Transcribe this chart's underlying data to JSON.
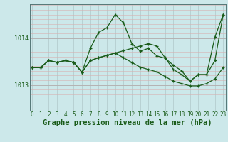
{
  "bg_color": "#cce8ea",
  "grid_color_v": "#b0c8ca",
  "grid_color_h_minor": "#d8b0b0",
  "grid_color_h_major": "#b0b0b0",
  "line_color": "#1a5c1a",
  "xlabel": "Graphe pression niveau de la mer (hPa)",
  "xlabel_fontsize": 7.5,
  "tick_fontsize": 6.0,
  "ytick_labels": [
    1013,
    1014
  ],
  "ylim": [
    1012.45,
    1014.72
  ],
  "xlim": [
    -0.3,
    23.3
  ],
  "series": [
    [
      1013.37,
      1013.37,
      1013.52,
      1013.48,
      1013.52,
      1013.48,
      1013.27,
      1013.78,
      1014.12,
      1014.22,
      1014.5,
      1014.32,
      1013.88,
      1013.72,
      1013.78,
      1013.62,
      1013.57,
      1013.42,
      1013.3,
      1013.08,
      1013.22,
      1013.22,
      1014.02,
      1014.5
    ],
    [
      1013.37,
      1013.37,
      1013.52,
      1013.48,
      1013.52,
      1013.48,
      1013.27,
      1013.52,
      1013.58,
      1013.63,
      1013.68,
      1013.73,
      1013.78,
      1013.83,
      1013.88,
      1013.83,
      1013.58,
      1013.33,
      1013.22,
      1013.08,
      1013.22,
      1013.22,
      1013.52,
      1014.5
    ],
    [
      1013.37,
      1013.37,
      1013.52,
      1013.48,
      1013.52,
      1013.48,
      1013.27,
      1013.52,
      1013.58,
      1013.63,
      1013.68,
      1013.58,
      1013.48,
      1013.38,
      1013.33,
      1013.28,
      1013.18,
      1013.08,
      1013.03,
      1012.98,
      1012.98,
      1013.03,
      1013.13,
      1013.37
    ]
  ]
}
